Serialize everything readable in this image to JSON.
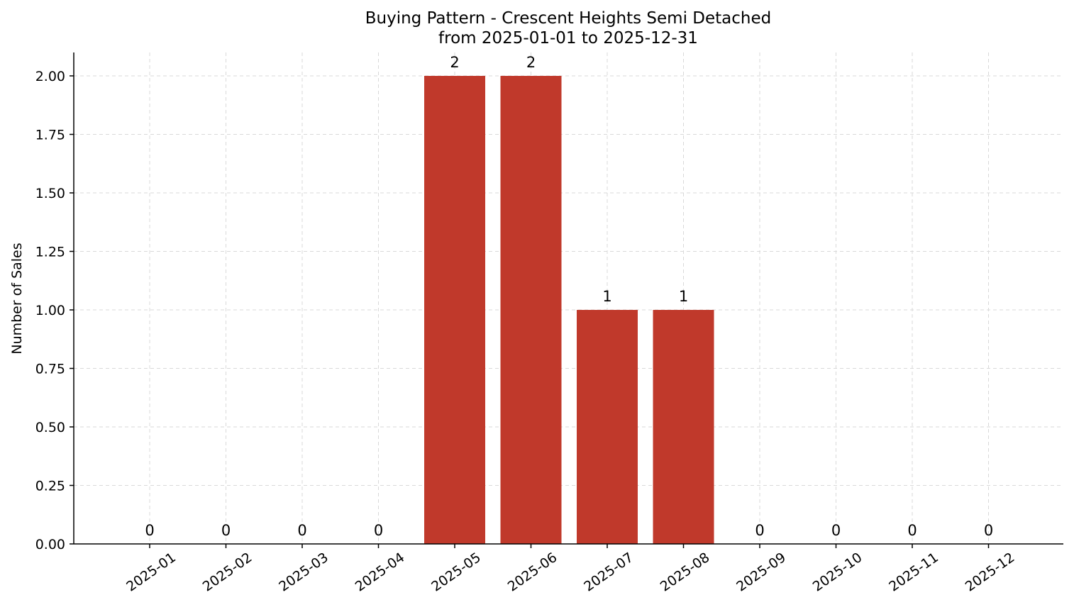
{
  "chart_data": {
    "type": "bar",
    "title": "Buying Pattern - Crescent Heights Semi Detached",
    "subtitle": "from 2025-01-01 to 2025-12-31",
    "xlabel": "",
    "ylabel": "Number of Sales",
    "categories": [
      "2025-01",
      "2025-02",
      "2025-03",
      "2025-04",
      "2025-05",
      "2025-06",
      "2025-07",
      "2025-08",
      "2025-09",
      "2025-10",
      "2025-11",
      "2025-12"
    ],
    "values": [
      0,
      0,
      0,
      0,
      2,
      2,
      1,
      1,
      0,
      0,
      0,
      0
    ],
    "data_labels": [
      "0",
      "0",
      "0",
      "0",
      "2",
      "2",
      "1",
      "1",
      "0",
      "0",
      "0",
      "0"
    ],
    "ylim": [
      0,
      2.1
    ],
    "yticks": [
      0,
      0.25,
      0.5,
      0.75,
      1.0,
      1.25,
      1.5,
      1.75,
      2.0
    ],
    "ytick_labels": [
      "0.00",
      "0.25",
      "0.50",
      "0.75",
      "1.00",
      "1.25",
      "1.50",
      "1.75",
      "2.00"
    ],
    "grid": true,
    "bar_color": "#c0392b",
    "grid_color": "#d9d9d9"
  }
}
